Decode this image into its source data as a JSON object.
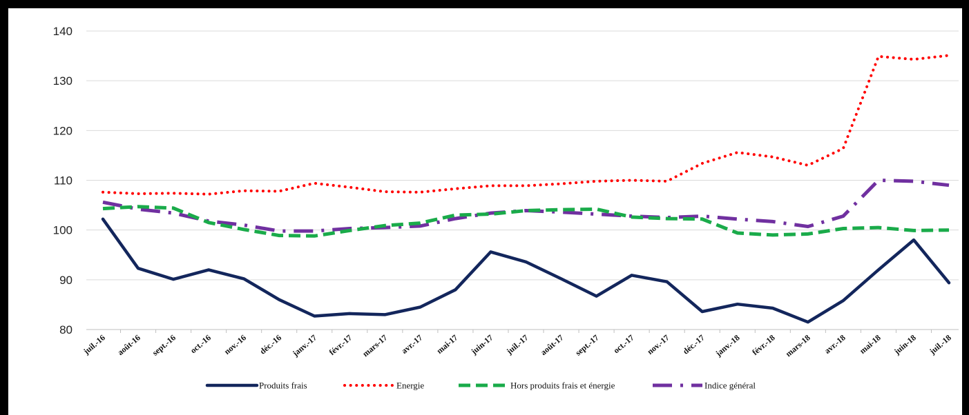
{
  "chart_data": {
    "type": "line",
    "title": "",
    "xlabel": "",
    "ylabel": "",
    "ylim": [
      80,
      140
    ],
    "yticks": [
      80,
      90,
      100,
      110,
      120,
      130,
      140
    ],
    "grid": true,
    "legend_position": "bottom",
    "categories": [
      "juil.-16",
      "août-16",
      "sept.-16",
      "oct.-16",
      "nov.-16",
      "déc.-16",
      "janv.-17",
      "févr.-17",
      "mars-17",
      "avr.-17",
      "mai-17",
      "juin-17",
      "juil.-17",
      "août-17",
      "sept.-17",
      "oct.-17",
      "nov.-17",
      "déc.-17",
      "janv.-18",
      "févr.-18",
      "mars-18",
      "avr.-18",
      "mai-18",
      "juin-18",
      "juil.-18"
    ],
    "series": [
      {
        "name": "Produits frais",
        "color": "#13265c",
        "style": "solid",
        "values": [
          102.2,
          92.3,
          90.1,
          92.0,
          90.2,
          86.0,
          82.7,
          83.2,
          83.0,
          84.5,
          88.0,
          95.6,
          93.6,
          90.2,
          86.7,
          90.9,
          89.6,
          83.6,
          85.1,
          84.3,
          81.5,
          85.8,
          92.0,
          98.0,
          89.4
        ]
      },
      {
        "name": "Energie",
        "color": "#ff0000",
        "style": "dotted",
        "values": [
          107.6,
          107.3,
          107.4,
          107.2,
          107.9,
          107.8,
          109.4,
          108.6,
          107.7,
          107.6,
          108.3,
          108.9,
          108.9,
          109.3,
          109.8,
          110.0,
          109.8,
          113.4,
          115.6,
          114.7,
          113.0,
          116.4,
          134.9,
          134.3,
          135.1
        ]
      },
      {
        "name": "Hors produits frais et énergie",
        "color": "#1aab4a",
        "style": "dashed",
        "values": [
          104.3,
          104.7,
          104.4,
          101.5,
          100.1,
          98.9,
          98.8,
          99.9,
          100.9,
          101.4,
          103.0,
          103.2,
          103.9,
          104.1,
          104.2,
          102.6,
          102.3,
          102.2,
          99.4,
          99.0,
          99.2,
          100.3,
          100.5,
          99.9,
          100.0
        ]
      },
      {
        "name": "Indice général",
        "color": "#7030a0",
        "style": "dashdot",
        "values": [
          105.6,
          104.2,
          103.4,
          101.8,
          101.0,
          99.8,
          99.8,
          100.3,
          100.5,
          100.8,
          102.3,
          103.4,
          103.9,
          103.6,
          103.2,
          102.8,
          102.5,
          102.8,
          102.2,
          101.7,
          100.7,
          102.8,
          110.0,
          109.8,
          109.0
        ]
      }
    ]
  }
}
